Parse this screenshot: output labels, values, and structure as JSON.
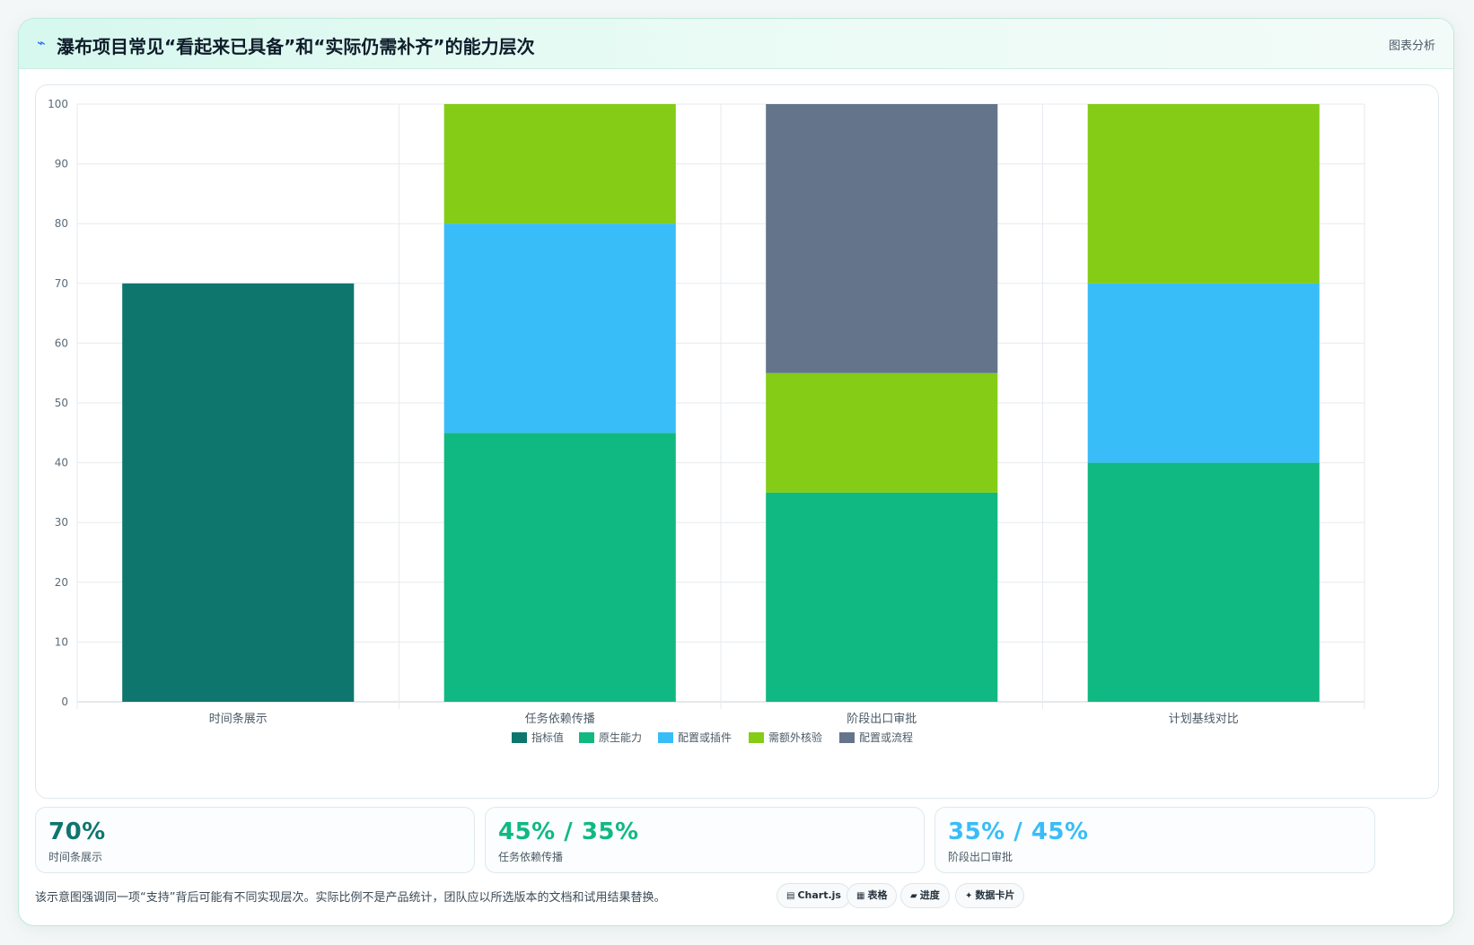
{
  "header": {
    "title": "瀑布项目常见“看起来已具备”和“实际仍需补齐”的能力层次",
    "tag": "图表分析"
  },
  "chart_data": {
    "type": "bar",
    "stacked": true,
    "categories": [
      "时间条展示",
      "任务依赖传播",
      "阶段出口审批",
      "计划基线对比"
    ],
    "ylim": [
      0,
      100
    ],
    "yticks": [
      0,
      10,
      20,
      30,
      40,
      50,
      60,
      70,
      80,
      90,
      100
    ],
    "grid": true,
    "legend_position": "bottom",
    "series": [
      {
        "name": "指标值",
        "color": "#0f766e",
        "values": [
          70,
          0,
          0,
          0
        ]
      },
      {
        "name": "原生能力",
        "color": "#10b981",
        "values": [
          0,
          45,
          35,
          40
        ]
      },
      {
        "name": "配置或插件",
        "color": "#38bdf8",
        "values": [
          0,
          35,
          0,
          30
        ]
      },
      {
        "name": "需额外核验",
        "color": "#84cc16",
        "values": [
          0,
          20,
          20,
          30
        ]
      },
      {
        "name": "配置或流程",
        "color": "#64748b",
        "values": [
          0,
          0,
          45,
          0
        ]
      }
    ]
  },
  "stats": [
    {
      "value": "70%",
      "label": "时间条展示",
      "color": "#0f766e"
    },
    {
      "value": "45% / 35%",
      "label": "任务依赖传播",
      "color": "#10b981"
    },
    {
      "value": "35% / 45%",
      "label": "阶段出口审批",
      "color": "#38bdf8"
    }
  ],
  "footer": {
    "note": "该示意图强调同一项“支持”背后可能有不同实现层次。实际比例不是产品统计，团队应以所选版本的文档和试用结果替换。",
    "chips": [
      {
        "icon": "▤",
        "icon_name": "chart-icon",
        "label": "Chart.js"
      },
      {
        "icon": "▦",
        "icon_name": "table-icon",
        "label": "表格"
      },
      {
        "icon": "▰",
        "icon_name": "progress-icon",
        "label": "进度"
      },
      {
        "icon": "✦",
        "icon_name": "card-icon",
        "label": "数据卡片"
      }
    ]
  }
}
